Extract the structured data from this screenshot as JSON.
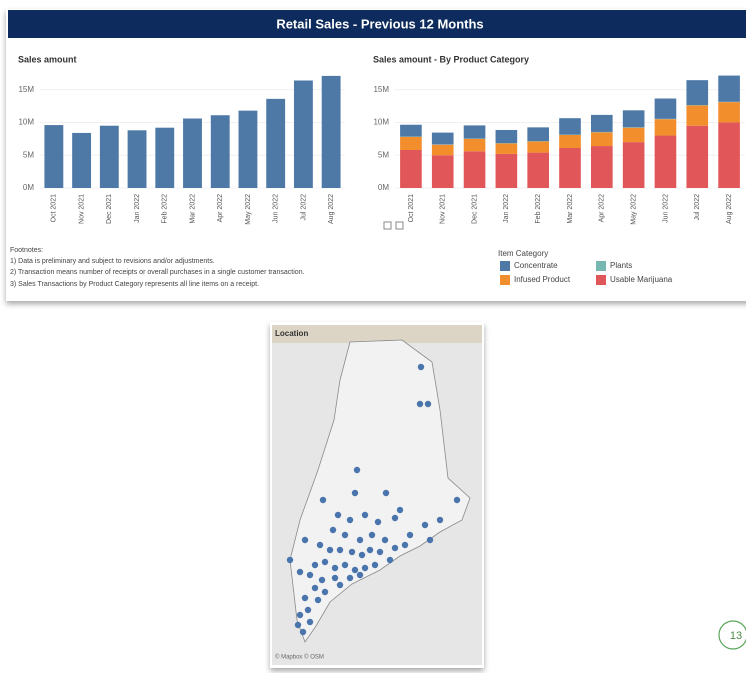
{
  "title": "Retail Sales - Previous 12 Months",
  "chart_data": [
    {
      "type": "bar",
      "title": "Sales amount",
      "categories": [
        "Oct 2021",
        "Nov 2021",
        "Dec 2021",
        "Jan 2022",
        "Feb 2022",
        "Mar 2022",
        "Apr 2022",
        "May 2022",
        "Jun 2022",
        "Jul 2022",
        "Aug 2022"
      ],
      "values": [
        9.6,
        8.4,
        9.5,
        8.8,
        9.2,
        10.6,
        11.1,
        11.8,
        13.6,
        16.4,
        17.1
      ],
      "color": "#4e79a7",
      "ylim": [
        0,
        18
      ],
      "yticks": [
        {
          "value": 0,
          "label": "0M"
        },
        {
          "value": 5,
          "label": "5M"
        },
        {
          "value": 10,
          "label": "10M"
        },
        {
          "value": 15,
          "label": "15M"
        }
      ],
      "grid": true
    },
    {
      "type": "bar",
      "stacked": true,
      "title": "Sales amount - By Product Category",
      "categories": [
        "Oct 2021",
        "Nov 2021",
        "Dec 2021",
        "Jan 2022",
        "Feb 2022",
        "Mar 2022",
        "Apr 2022",
        "May 2022",
        "Jun 2022",
        "Jul 2022",
        "Aug 2022"
      ],
      "legend_title": "Item Category",
      "series": [
        {
          "name": "Concentrate",
          "color": "#4e79a7",
          "values": [
            1.8,
            1.8,
            2.0,
            2.0,
            2.1,
            2.5,
            2.6,
            2.6,
            3.1,
            3.8,
            4.0
          ]
        },
        {
          "name": "Plants",
          "color": "#76b7b2",
          "values": [
            0.05,
            0.05,
            0.05,
            0.05,
            0.05,
            0.05,
            0.05,
            0.05,
            0.05,
            0.05,
            0.05
          ]
        },
        {
          "name": "Infused Product",
          "color": "#f28e2b",
          "values": [
            2.0,
            1.6,
            1.9,
            1.6,
            1.7,
            2.0,
            2.1,
            2.2,
            2.5,
            3.1,
            3.1
          ]
        },
        {
          "name": "Usable Marijuana",
          "color": "#e15759",
          "values": [
            5.8,
            5.0,
            5.6,
            5.2,
            5.4,
            6.1,
            6.4,
            7.0,
            8.0,
            9.5,
            10.0
          ]
        }
      ],
      "ylim": [
        0,
        18
      ],
      "yticks": [
        {
          "value": 0,
          "label": "0M"
        },
        {
          "value": 5,
          "label": "5M"
        },
        {
          "value": 10,
          "label": "10M"
        },
        {
          "value": 15,
          "label": "15M"
        }
      ],
      "grid": true
    }
  ],
  "footnotes": [
    "Footnotes:",
    "1) Data is preliminary and subject to revisions and/or adjustments.",
    "2) Transaction means number of receipts or overall purchases in a single customer transaction.",
    "3) Sales Transactions by Product Category represents all line items on a receipt."
  ],
  "map": {
    "title": "Location",
    "attribution": "© Mapbox © OSM"
  },
  "page_number": "13"
}
